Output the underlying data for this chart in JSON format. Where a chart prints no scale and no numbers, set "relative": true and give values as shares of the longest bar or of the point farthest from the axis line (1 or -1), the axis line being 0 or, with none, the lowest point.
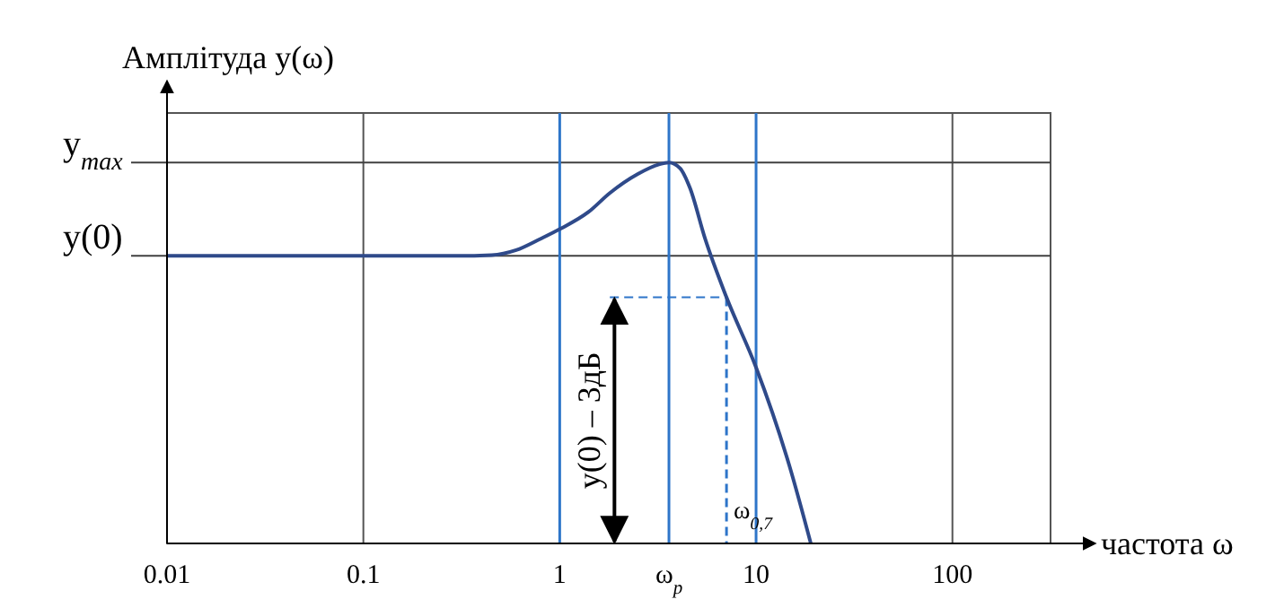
{
  "chart_data": {
    "type": "line",
    "relative": true,
    "log": "x",
    "ylabel": "Амплітуда y(ω)",
    "xlabel": "частота ω",
    "xlim": [
      0.01,
      316
    ],
    "xticks": [
      0.01,
      0.1,
      1,
      10,
      100
    ],
    "grid": "x",
    "series": [
      {
        "color": "#2f4a8a",
        "x": [
          0.01,
          0.1,
          0.3,
          0.45,
          0.6,
          0.8,
          1,
          1.4,
          1.8,
          2.5,
          3.2,
          3.6,
          4.1,
          4.6,
          5.5,
          7.07,
          10,
          14.8,
          19
        ],
        "values": [
          0.755,
          0.755,
          0.755,
          0.757,
          0.77,
          0.8,
          0.825,
          0.87,
          0.92,
          0.97,
          0.995,
          1,
          0.985,
          0.934,
          0.8,
          0.646,
          0.462,
          0.203,
          0
        ]
      }
    ],
    "ref_lines": [
      {
        "axis": "y",
        "value": 1,
        "label": "y$_{max}$",
        "color": "#404040"
      },
      {
        "axis": "y",
        "value": 0.755,
        "label": "y(0)",
        "color": "#404040"
      },
      {
        "axis": "y",
        "value": 0.646,
        "color": "#2e75c9",
        "line_style": "dashed"
      },
      {
        "axis": "x",
        "value": 1,
        "color": "#2e75c9"
      },
      {
        "axis": "x",
        "value": 10,
        "color": "#2e75c9"
      },
      {
        "axis": "x",
        "value": 3.6,
        "label": "ω$_{p}$",
        "color": "#2e75c9"
      },
      {
        "axis": "x",
        "value": 7.07,
        "label": "ω$_{0,7}$",
        "color": "#2e75c9",
        "line_style": "dashed"
      }
    ],
    "annotations": [
      "y(0) – 3дБ"
    ]
  }
}
